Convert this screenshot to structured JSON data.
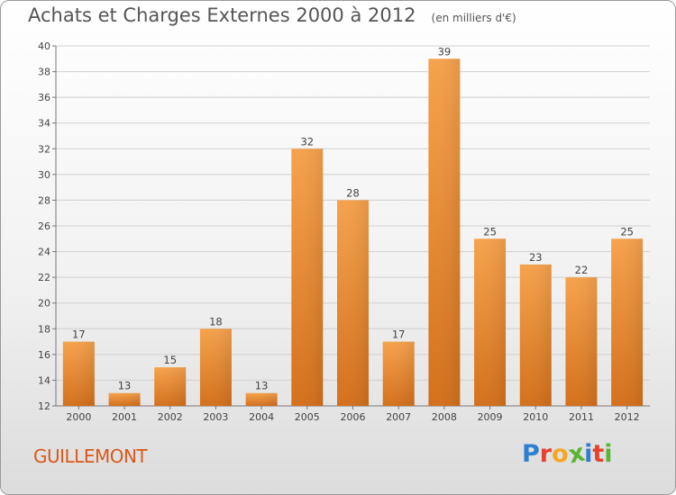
{
  "chart_data": {
    "type": "bar",
    "title": "Achats et Charges Externes 2000 à 2012",
    "subtitle": "(en milliers d'€)",
    "categories": [
      "2000",
      "2001",
      "2002",
      "2003",
      "2004",
      "2005",
      "2006",
      "2007",
      "2008",
      "2009",
      "2010",
      "2011",
      "2012"
    ],
    "values": [
      17,
      13,
      15,
      18,
      13,
      32,
      28,
      17,
      39,
      25,
      23,
      22,
      25
    ],
    "ylim": [
      12,
      40
    ],
    "yticks": [
      12,
      14,
      16,
      18,
      20,
      22,
      24,
      26,
      28,
      30,
      32,
      34,
      36,
      38,
      40
    ],
    "grid": true,
    "xlabel": "",
    "ylabel": ""
  },
  "location": "GUILLEMONT",
  "logo": {
    "text": "Proxiti",
    "letters": [
      {
        "char": "P",
        "color": "#2f7fd1"
      },
      {
        "char": "r",
        "color": "#e8412c"
      },
      {
        "char": "o",
        "color": "#f5a623"
      },
      {
        "char": "x",
        "color": "#5ab535"
      },
      {
        "char": "i",
        "color": "#2f7fd1"
      },
      {
        "char": "t",
        "color": "#e8412c"
      },
      {
        "char": "i",
        "color": "#5ab535"
      }
    ]
  },
  "colors": {
    "bar_light": "#f6a24c",
    "bar_dark": "#d4701b",
    "grid": "#cfcfcf",
    "axis": "#777777",
    "location_text": "#d9591a"
  }
}
